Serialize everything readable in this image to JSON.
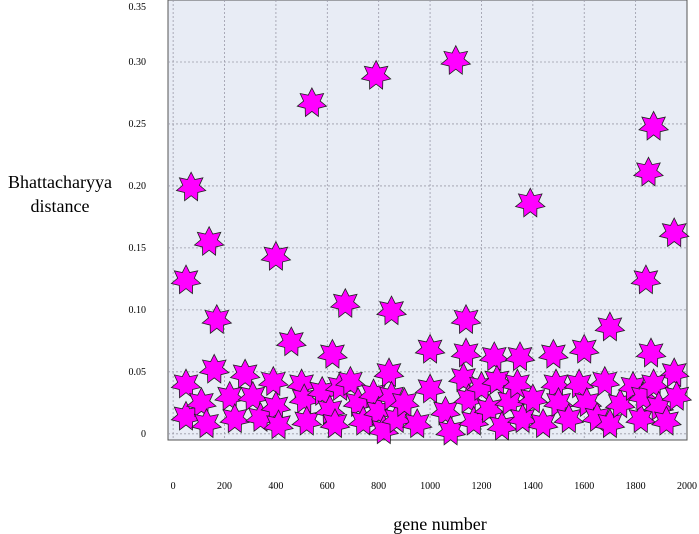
{
  "chart_data": {
    "type": "scatter",
    "title": "",
    "xlabel": "gene number",
    "ylabel": "Bhattacharyya\ndistance",
    "xlim": [
      -20,
      2000
    ],
    "ylim": [
      -0.005,
      0.35
    ],
    "xticks": [
      0,
      200,
      400,
      600,
      800,
      1000,
      1200,
      1400,
      1600,
      1800,
      2000
    ],
    "xtick_labels": [
      "0",
      "200",
      "400",
      "600",
      "800",
      "1000",
      "1200",
      "1400",
      "1600",
      "1800",
      "2000"
    ],
    "yticks": [
      0,
      0.05,
      0.1,
      0.15,
      0.2,
      0.25,
      0.3,
      0.35
    ],
    "ytick_labels": [
      "0",
      "0.05",
      "0.10",
      "0.15",
      "0.20",
      "0.25",
      "0.30",
      "0.35"
    ],
    "grid": true,
    "marker": "star",
    "marker_color": "#ff00ff",
    "marker_edge_color": "#222222",
    "plot_background": "#e8ecf5",
    "grid_color": "#9a9aa8",
    "series": [
      {
        "points": [
          [
            50,
            0.124
          ],
          [
            70,
            0.199
          ],
          [
            140,
            0.155
          ],
          [
            170,
            0.092
          ],
          [
            400,
            0.143
          ],
          [
            460,
            0.074
          ],
          [
            540,
            0.267
          ],
          [
            620,
            0.064
          ],
          [
            670,
            0.105
          ],
          [
            790,
            0.289
          ],
          [
            850,
            0.099
          ],
          [
            1000,
            0.068
          ],
          [
            1100,
            0.301
          ],
          [
            1140,
            0.092
          ],
          [
            1140,
            0.065
          ],
          [
            1250,
            0.062
          ],
          [
            1350,
            0.062
          ],
          [
            1390,
            0.186
          ],
          [
            1480,
            0.064
          ],
          [
            1600,
            0.068
          ],
          [
            1700,
            0.086
          ],
          [
            1840,
            0.124
          ],
          [
            1850,
            0.211
          ],
          [
            1860,
            0.065
          ],
          [
            1870,
            0.248
          ],
          [
            1950,
            0.162
          ],
          [
            1950,
            0.049
          ],
          [
            50,
            0.04
          ],
          [
            50,
            0.014
          ],
          [
            110,
            0.025
          ],
          [
            130,
            0.008
          ],
          [
            160,
            0.052
          ],
          [
            220,
            0.03
          ],
          [
            240,
            0.012
          ],
          [
            280,
            0.048
          ],
          [
            310,
            0.03
          ],
          [
            340,
            0.013
          ],
          [
            390,
            0.042
          ],
          [
            400,
            0.022
          ],
          [
            410,
            0.007
          ],
          [
            500,
            0.04
          ],
          [
            510,
            0.028
          ],
          [
            520,
            0.01
          ],
          [
            580,
            0.034
          ],
          [
            610,
            0.019
          ],
          [
            630,
            0.008
          ],
          [
            650,
            0.038
          ],
          [
            690,
            0.042
          ],
          [
            720,
            0.025
          ],
          [
            740,
            0.01
          ],
          [
            780,
            0.032
          ],
          [
            800,
            0.018
          ],
          [
            820,
            0.003
          ],
          [
            840,
            0.049
          ],
          [
            850,
            0.03
          ],
          [
            870,
            0.012
          ],
          [
            900,
            0.025
          ],
          [
            950,
            0.008
          ],
          [
            1000,
            0.036
          ],
          [
            1060,
            0.018
          ],
          [
            1080,
            0.002
          ],
          [
            1130,
            0.045
          ],
          [
            1150,
            0.028
          ],
          [
            1170,
            0.01
          ],
          [
            1200,
            0.038
          ],
          [
            1230,
            0.02
          ],
          [
            1260,
            0.043
          ],
          [
            1280,
            0.006
          ],
          [
            1310,
            0.026
          ],
          [
            1340,
            0.04
          ],
          [
            1360,
            0.012
          ],
          [
            1400,
            0.028
          ],
          [
            1440,
            0.008
          ],
          [
            1490,
            0.04
          ],
          [
            1500,
            0.025
          ],
          [
            1540,
            0.012
          ],
          [
            1580,
            0.04
          ],
          [
            1610,
            0.025
          ],
          [
            1650,
            0.013
          ],
          [
            1680,
            0.042
          ],
          [
            1700,
            0.008
          ],
          [
            1740,
            0.024
          ],
          [
            1790,
            0.038
          ],
          [
            1820,
            0.012
          ],
          [
            1830,
            0.03
          ],
          [
            1870,
            0.04
          ],
          [
            1890,
            0.022
          ],
          [
            1920,
            0.01
          ],
          [
            1960,
            0.03
          ]
        ]
      }
    ]
  }
}
